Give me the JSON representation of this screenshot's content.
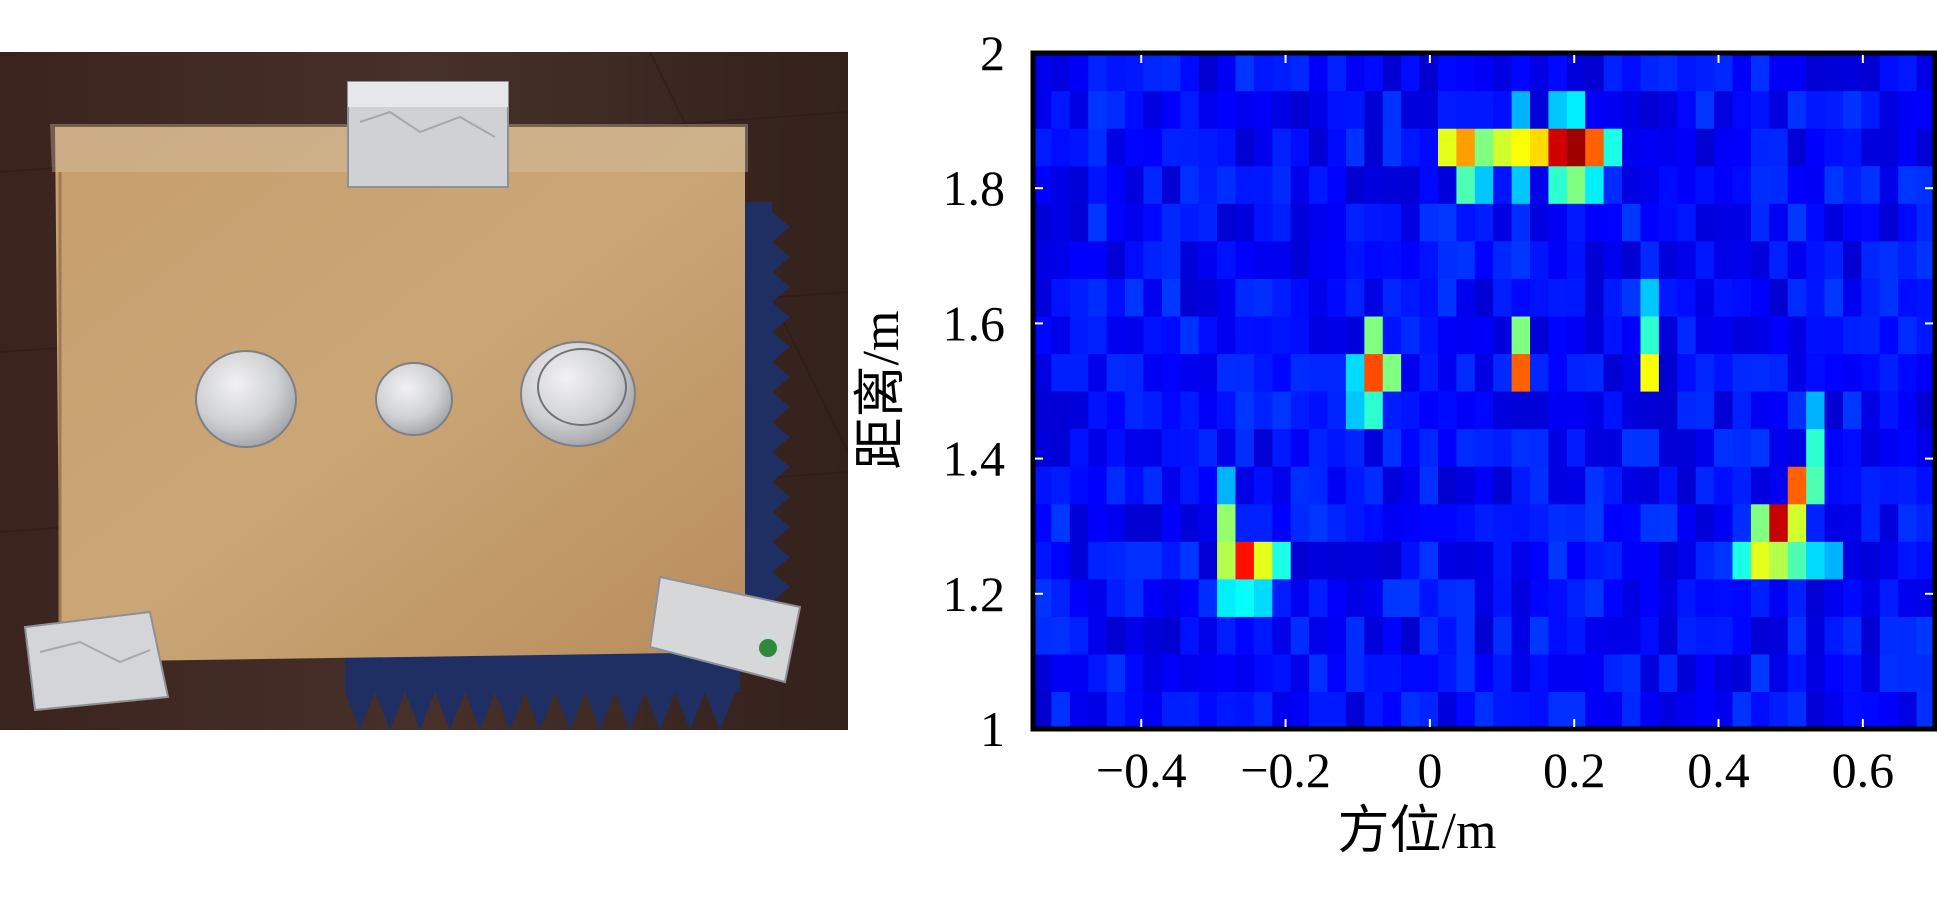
{
  "photo": {
    "subject": "cardboard-box-with-foil-targets",
    "colors": {
      "floor": "#3b2620",
      "box": "#c49a6a",
      "foil": "#d9dadc",
      "absorber": "#1f2f63"
    }
  },
  "chart_data": {
    "type": "heatmap",
    "title": "",
    "xlabel": "方位/m",
    "ylabel": "距离/m",
    "xlim": [
      -0.55,
      0.7
    ],
    "ylim": [
      1.0,
      2.0
    ],
    "xticks": [
      -0.4,
      -0.2,
      0,
      0.2,
      0.4,
      0.6
    ],
    "xtick_labels": [
      "−0.4",
      "−0.2",
      "0",
      "0.2",
      "0.4",
      "0.6"
    ],
    "yticks": [
      1,
      1.2,
      1.4,
      1.6,
      1.8,
      2
    ],
    "ytick_labels": [
      "1",
      "1.2",
      "1.4",
      "1.6",
      "1.8",
      "2"
    ],
    "grid": false,
    "colormap": "jet",
    "value_range": [
      0,
      1
    ],
    "x_bins": 49,
    "y_bins": 18,
    "background_level": 0.13,
    "hotspots": [
      {
        "x": 0.02,
        "y": 1.84,
        "v": 0.6
      },
      {
        "x": 0.045,
        "y": 1.84,
        "v": 0.72
      },
      {
        "x": 0.07,
        "y": 1.84,
        "v": 0.5
      },
      {
        "x": 0.095,
        "y": 1.84,
        "v": 0.58
      },
      {
        "x": 0.12,
        "y": 1.84,
        "v": 0.62
      },
      {
        "x": 0.145,
        "y": 1.84,
        "v": 0.66
      },
      {
        "x": 0.17,
        "y": 1.84,
        "v": 0.92
      },
      {
        "x": 0.195,
        "y": 1.84,
        "v": 0.97
      },
      {
        "x": 0.22,
        "y": 1.84,
        "v": 0.78
      },
      {
        "x": 0.245,
        "y": 1.84,
        "v": 0.4
      },
      {
        "x": 0.045,
        "y": 1.78,
        "v": 0.45
      },
      {
        "x": 0.07,
        "y": 1.78,
        "v": 0.32
      },
      {
        "x": 0.12,
        "y": 1.78,
        "v": 0.32
      },
      {
        "x": 0.17,
        "y": 1.78,
        "v": 0.42
      },
      {
        "x": 0.195,
        "y": 1.78,
        "v": 0.5
      },
      {
        "x": 0.22,
        "y": 1.78,
        "v": 0.36
      },
      {
        "x": 0.12,
        "y": 1.9,
        "v": 0.3
      },
      {
        "x": 0.17,
        "y": 1.9,
        "v": 0.32
      },
      {
        "x": 0.195,
        "y": 1.9,
        "v": 0.36
      },
      {
        "x": -0.08,
        "y": 1.61,
        "v": 0.3
      },
      {
        "x": -0.08,
        "y": 1.56,
        "v": 0.5
      },
      {
        "x": -0.08,
        "y": 1.54,
        "v": 0.8
      },
      {
        "x": -0.055,
        "y": 1.54,
        "v": 0.5
      },
      {
        "x": -0.105,
        "y": 1.54,
        "v": 0.34
      },
      {
        "x": -0.08,
        "y": 1.48,
        "v": 0.42
      },
      {
        "x": -0.105,
        "y": 1.48,
        "v": 0.32
      },
      {
        "x": 0.12,
        "y": 1.59,
        "v": 0.5
      },
      {
        "x": 0.12,
        "y": 1.54,
        "v": 0.78
      },
      {
        "x": 0.3,
        "y": 1.66,
        "v": 0.32
      },
      {
        "x": 0.3,
        "y": 1.59,
        "v": 0.42
      },
      {
        "x": 0.3,
        "y": 1.54,
        "v": 0.62
      },
      {
        "x": -0.27,
        "y": 1.34,
        "v": 0.3
      },
      {
        "x": -0.27,
        "y": 1.29,
        "v": 0.52
      },
      {
        "x": -0.27,
        "y": 1.24,
        "v": 0.55
      },
      {
        "x": -0.245,
        "y": 1.24,
        "v": 0.86
      },
      {
        "x": -0.22,
        "y": 1.24,
        "v": 0.6
      },
      {
        "x": -0.195,
        "y": 1.24,
        "v": 0.4
      },
      {
        "x": -0.27,
        "y": 1.18,
        "v": 0.36
      },
      {
        "x": -0.245,
        "y": 1.18,
        "v": 0.38
      },
      {
        "x": -0.22,
        "y": 1.18,
        "v": 0.34
      },
      {
        "x": 0.53,
        "y": 1.48,
        "v": 0.3
      },
      {
        "x": 0.53,
        "y": 1.43,
        "v": 0.42
      },
      {
        "x": 0.505,
        "y": 1.38,
        "v": 0.78
      },
      {
        "x": 0.53,
        "y": 1.38,
        "v": 0.45
      },
      {
        "x": 0.455,
        "y": 1.29,
        "v": 0.5
      },
      {
        "x": 0.48,
        "y": 1.29,
        "v": 0.93
      },
      {
        "x": 0.505,
        "y": 1.29,
        "v": 0.58
      },
      {
        "x": 0.43,
        "y": 1.24,
        "v": 0.4
      },
      {
        "x": 0.455,
        "y": 1.24,
        "v": 0.6
      },
      {
        "x": 0.48,
        "y": 1.24,
        "v": 0.55
      },
      {
        "x": 0.505,
        "y": 1.24,
        "v": 0.45
      },
      {
        "x": 0.53,
        "y": 1.24,
        "v": 0.34
      },
      {
        "x": 0.555,
        "y": 1.24,
        "v": 0.3
      }
    ]
  }
}
